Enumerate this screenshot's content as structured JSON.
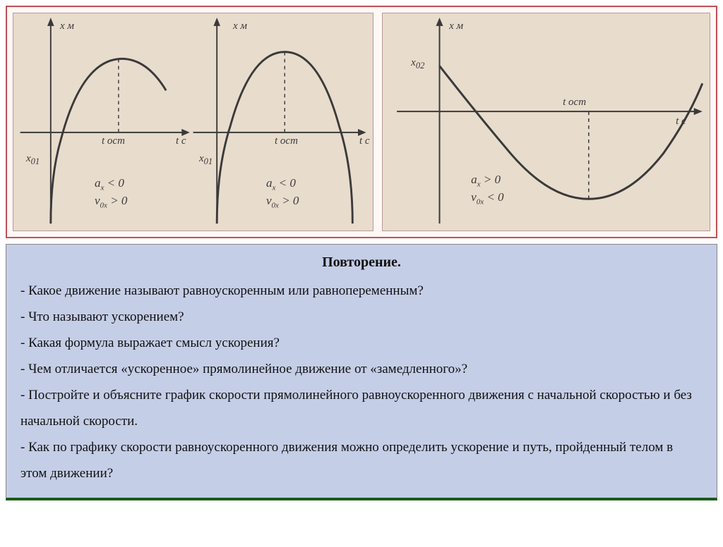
{
  "colors": {
    "top_border": "#c44d58",
    "top_bg": "#fff8f4",
    "panel_bg": "#e8dccd",
    "panel_border": "#bb9999",
    "bottom_bg": "#c5cee7",
    "curve": "#3a3a3a",
    "axis": "#3a3a3a",
    "text": "#111111"
  },
  "graphs": {
    "left": {
      "sub_a": {
        "y_label": "x м",
        "x_label": "t c",
        "t_label": "t ост",
        "x0_label": "x₀₁",
        "cond_a": "aₓ < 0",
        "cond_v": "v₀ₓ > 0",
        "type": "parabola-down-from-neg"
      },
      "sub_b": {
        "y_label": "x м",
        "x_label": "t c",
        "t_label": "t ост",
        "x0_label": "x₀₁",
        "cond_a": "aₓ < 0",
        "cond_v": "v₀ₓ > 0",
        "type": "parabola-down-full"
      }
    },
    "right": {
      "y_label": "x м",
      "x_label": "t c",
      "t_label": "t ост",
      "x0_label": "x₀₂",
      "cond_a": "aₓ > 0",
      "cond_v": "v₀ₓ < 0",
      "type": "parabola-up"
    }
  },
  "review": {
    "title": "Повторение.",
    "questions": [
      "- Какое движение называют равноускоренным или равнопеременным?",
      "- Что называют ускорением?",
      "- Какая формула выражает смысл ускорения?",
      "- Чем отличается «ускоренное» прямолинейное движение от «замедленного»?",
      "- Постройте  и объясните график скорости прямолинейного равноускоренного движения с начальной скоростью и без начальной скорости.",
      "- Как по графику скорости равноускоренного движения можно определить ускорение и путь, пройденный телом в этом движении?"
    ]
  }
}
